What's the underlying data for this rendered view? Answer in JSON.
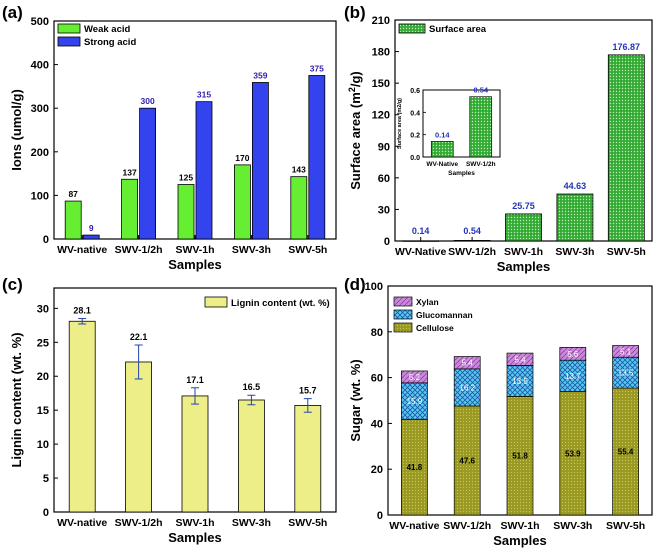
{
  "figure": {
    "panels": [
      "(a)",
      "(b)",
      "(c)",
      "(d)"
    ]
  },
  "colors": {
    "weak_acid": "#66ee33",
    "strong_acid": "#3344ee",
    "strong_label": "#3322aa",
    "surface_fill": "#33aa33",
    "surface_pattern": "#b8f0b8",
    "surface_label": "#2233bb",
    "lignin": "#eeee88",
    "cellulose": "#9a9a22",
    "glucomannan": "#55ccee",
    "xylan": "#cc88dd"
  },
  "chart_data": [
    {
      "panel": "(a)",
      "type": "bar",
      "categories": [
        "WV-native",
        "SWV-1/2h",
        "SWV-1h",
        "SWV-3h",
        "SWV-5h"
      ],
      "series": [
        {
          "name": "Weak acid",
          "values": [
            87,
            137,
            125,
            170,
            143
          ],
          "labels": [
            "87",
            "137",
            "125",
            "170",
            "143"
          ]
        },
        {
          "name": "Strong acid",
          "values": [
            9,
            300,
            315,
            359,
            375
          ],
          "labels": [
            "9",
            "300",
            "315",
            "359",
            "375"
          ]
        }
      ],
      "xlabel": "Samples",
      "ylabel": "Ions (umol/g)",
      "ylim": [
        0,
        500
      ],
      "yticks": [
        "0",
        "100",
        "200",
        "300",
        "400",
        "500"
      ],
      "legend": "top-left"
    },
    {
      "panel": "(b)",
      "type": "bar",
      "categories": [
        "WV-Native",
        "SWV-1/2h",
        "SWV-1h",
        "SWV-3h",
        "SWV-5h"
      ],
      "series": [
        {
          "name": "Surface area",
          "values": [
            0.14,
            0.54,
            25.75,
            44.63,
            176.87
          ],
          "labels": [
            "0.14",
            "0.54",
            "25.75",
            "44.63",
            "176.87"
          ]
        }
      ],
      "xlabel": "Samples",
      "ylabel_main": "Surface area (m",
      "ylabel_sup": "2",
      "ylabel_tail": "/g)",
      "ylim": [
        0,
        210
      ],
      "yticks": [
        "0",
        "30",
        "60",
        "90",
        "120",
        "150",
        "180",
        "210"
      ],
      "legend": "top-left",
      "inset": {
        "categories": [
          "WV-Native",
          "SWV-1/2h"
        ],
        "values": [
          0.14,
          0.54
        ],
        "labels": [
          "0.14",
          "0.54"
        ],
        "ylim": [
          0,
          0.6
        ],
        "yticks": [
          "0.0",
          "0.2",
          "0.4",
          "0.6"
        ],
        "xlabel": "Samples",
        "ylabel": "Surface area (m2/g)"
      }
    },
    {
      "panel": "(c)",
      "type": "bar",
      "categories": [
        "WV-native",
        "SWV-1/2h",
        "SWV-1h",
        "SWV-3h",
        "SWV-5h"
      ],
      "series": [
        {
          "name": "Lignin content (wt. %)",
          "values": [
            28.1,
            22.1,
            17.1,
            16.5,
            15.7
          ],
          "errors": [
            0.4,
            2.5,
            1.2,
            0.7,
            1.0
          ],
          "labels": [
            "28.1",
            "22.1",
            "17.1",
            "16.5",
            "15.7"
          ]
        }
      ],
      "xlabel": "Samples",
      "ylabel": "Lignin content (wt. %)",
      "ylim": [
        0,
        33
      ],
      "yticks": [
        "0",
        "5",
        "10",
        "15",
        "20",
        "25",
        "30"
      ],
      "legend": "top-right"
    },
    {
      "panel": "(d)",
      "type": "bar",
      "stacked": true,
      "categories": [
        "WV-native",
        "SWV-1/2h",
        "SWV-1h",
        "SWV-3h",
        "SWV-5h"
      ],
      "series": [
        {
          "name": "Cellulose",
          "values": [
            41.8,
            47.6,
            51.8,
            53.9,
            55.4
          ],
          "labels": [
            "41.8",
            "47.6",
            "51.8",
            "53.9",
            "55.4"
          ]
        },
        {
          "name": "Glucomannan",
          "values": [
            15.9,
            16.2,
            13.5,
            13.7,
            13.5
          ],
          "labels": [
            "15.9",
            "16.2",
            "13.5",
            "13.7",
            "13.5"
          ]
        },
        {
          "name": "Xylan",
          "values": [
            5.2,
            5.4,
            5.4,
            5.6,
            5.1
          ],
          "labels": [
            "5.2",
            "5.4",
            "5.4",
            "5.6",
            "5.1"
          ]
        }
      ],
      "legend_order": [
        "Xylan",
        "Glucomannan",
        "Cellulose"
      ],
      "xlabel": "Samples",
      "ylabel": "Sugar (wt. %)",
      "ylim": [
        0,
        100
      ],
      "yticks": [
        "0",
        "20",
        "40",
        "60",
        "80",
        "100"
      ],
      "legend": "top-left"
    }
  ]
}
